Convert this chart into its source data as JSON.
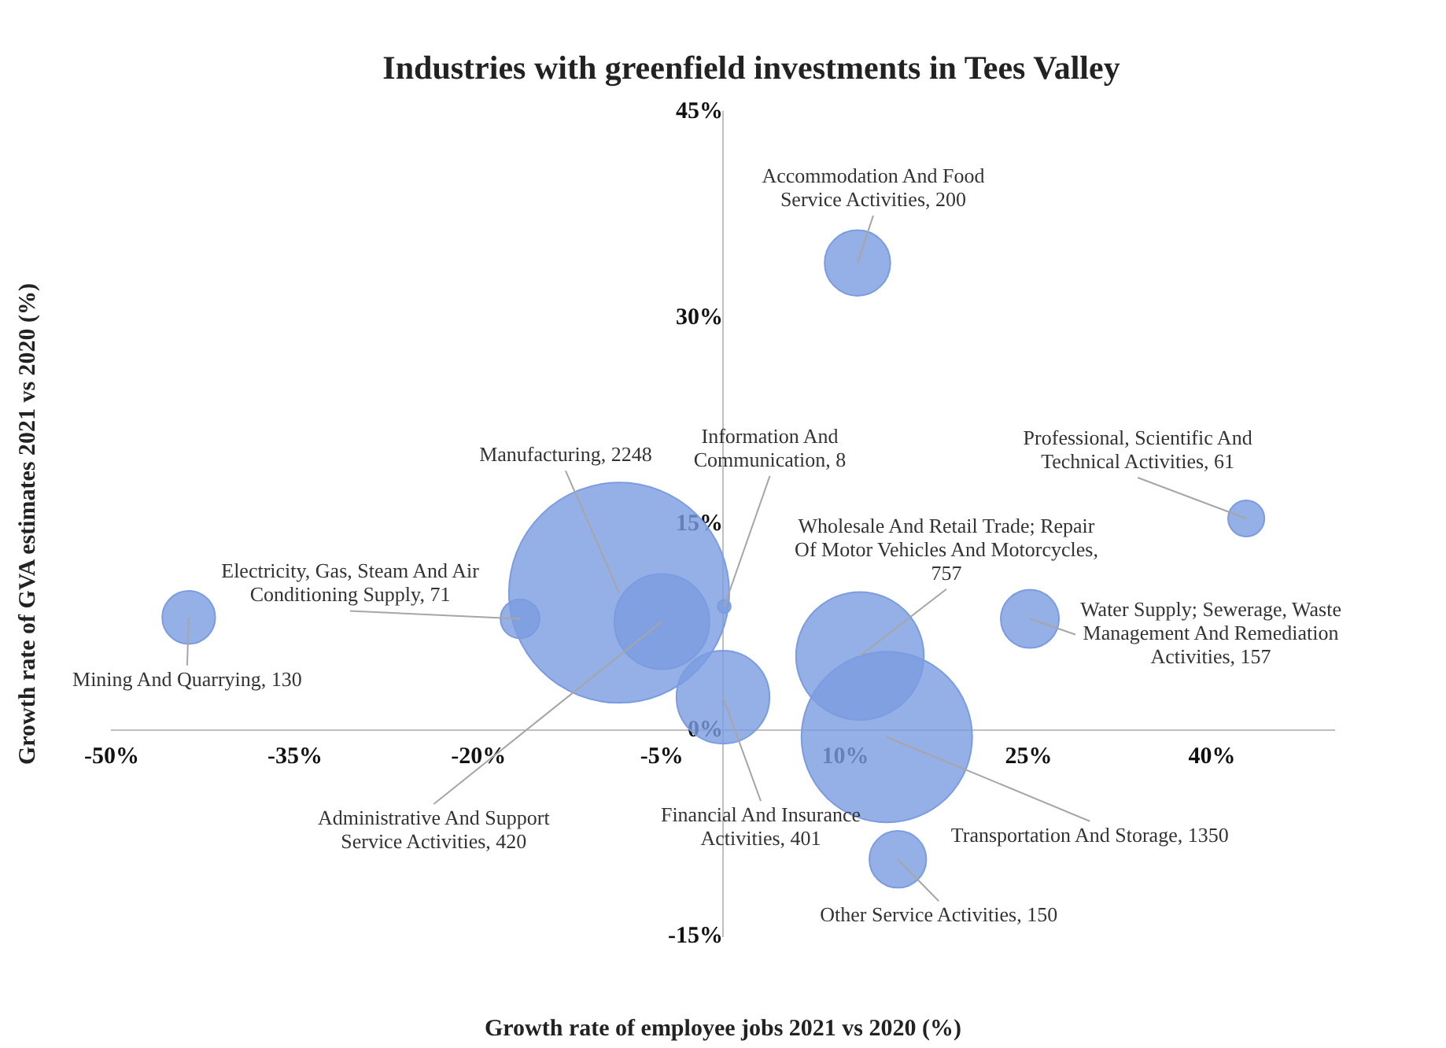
{
  "chart_data": {
    "type": "bubble",
    "title": "Industries with greenfield investments in Tees Valley",
    "xlabel": "Growth rate of employee jobs 2021 vs 2020 (%)",
    "ylabel": "Growth rate of GVA estimates 2021 vs 2020 (%)",
    "x": [
      11.0,
      42.8,
      -8.5,
      -5.0,
      0.1,
      -16.6,
      -43.7,
      0.0,
      11.2,
      13.4,
      25.1,
      14.3
    ],
    "values": [
      34.0,
      15.4,
      10.0,
      7.9,
      9.0,
      8.1,
      8.2,
      2.4,
      5.4,
      -0.5,
      8.1,
      -9.4
    ],
    "sizes": [
      200,
      61,
      2248,
      420,
      8,
      71,
      130,
      401,
      757,
      1350,
      157,
      150
    ],
    "value_labels": [
      "Accommodation And Food Service Activities, 200",
      "Professional, Scientific And Technical Activities, 61",
      "Manufacturing, 2248",
      "Administrative And Support Service Activities, 420",
      "Information And Communication, 8",
      "Electricity, Gas, Steam And Air Conditioning Supply, 71",
      "Mining And Quarrying, 130",
      "Financial And Insurance Activities, 401",
      "Wholesale And Retail Trade; Repair Of Motor Vehicles And Motorcycles, 757",
      "Transportation And Storage, 1350",
      "Water Supply; Sewerage, Waste Management And Remediation Activities, 157",
      "Other Service Activities, 150"
    ],
    "color": "#7b9ce0",
    "xlim": [
      -50,
      50
    ],
    "xticks": [
      {
        "value": -50,
        "label": "-50%"
      },
      {
        "value": -35,
        "label": "-35%"
      },
      {
        "value": -20,
        "label": "-20%"
      },
      {
        "value": -5,
        "label": "-5%"
      },
      {
        "value": 10,
        "label": "10%"
      },
      {
        "value": 25,
        "label": "25%"
      },
      {
        "value": 40,
        "label": "40%"
      }
    ],
    "ylim": [
      -15,
      45
    ],
    "yticks": [
      {
        "value": -15,
        "label": "-15%"
      },
      {
        "value": 0,
        "label": "0%"
      },
      {
        "value": 15,
        "label": "15%"
      },
      {
        "value": 30,
        "label": "30%"
      },
      {
        "value": 45,
        "label": "45%"
      }
    ]
  }
}
